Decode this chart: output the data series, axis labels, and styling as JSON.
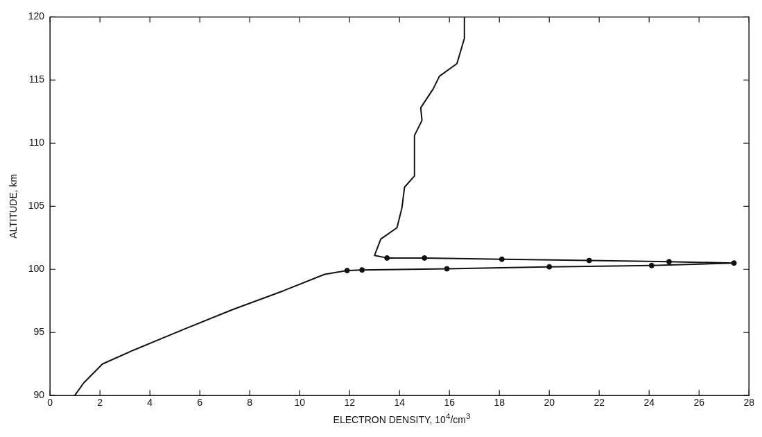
{
  "chart_data": {
    "type": "line",
    "xlabel": "ELECTRON DENSITY, 10$^{4}$/cm$^{3}$",
    "ylabel": "ALTITUDE, km",
    "xlim": [
      0,
      28
    ],
    "xticks": [
      0,
      2,
      4,
      6,
      8,
      10,
      12,
      14,
      16,
      18,
      20,
      22,
      24,
      26,
      28
    ],
    "ylim": [
      90,
      120
    ],
    "yticks": [
      90,
      95,
      100,
      105,
      110,
      115,
      120
    ],
    "grid": false,
    "legend": false,
    "series": [
      {
        "color": "#111111",
        "marker": "none",
        "line_style": "solid",
        "x": [
          0.99,
          1.35,
          2.1,
          3.35,
          5.3,
          7.3,
          9.35,
          11.0,
          11.9,
          12.5,
          15.9,
          20.0,
          24.1,
          27.4,
          24.8,
          21.6,
          18.1,
          15.0,
          13.5,
          13.0,
          13.25,
          13.9,
          14.1,
          14.2,
          14.6,
          14.6,
          14.9,
          14.85,
          15.35,
          15.6,
          16.3,
          16.6,
          16.6
        ],
        "values": [
          90,
          91.0,
          92.5,
          93.6,
          95.2,
          96.8,
          98.3,
          99.6,
          99.9,
          99.95,
          100.04,
          100.2,
          100.3,
          100.5,
          100.6,
          100.7,
          100.8,
          100.9,
          100.9,
          101.1,
          102.4,
          103.3,
          104.9,
          106.5,
          107.4,
          110.6,
          111.8,
          112.8,
          114.3,
          115.3,
          116.3,
          118.3,
          120
        ]
      },
      {
        "type": "scatter",
        "color": "#111111",
        "marker": "circle",
        "x": [
          11.9,
          12.5,
          15.9,
          20.0,
          24.1,
          27.4,
          24.8,
          21.6,
          18.1,
          15.0,
          13.5
        ],
        "values": [
          99.9,
          99.95,
          100.04,
          100.2,
          100.3,
          100.5,
          100.6,
          100.7,
          100.8,
          100.9,
          100.9
        ]
      }
    ]
  }
}
